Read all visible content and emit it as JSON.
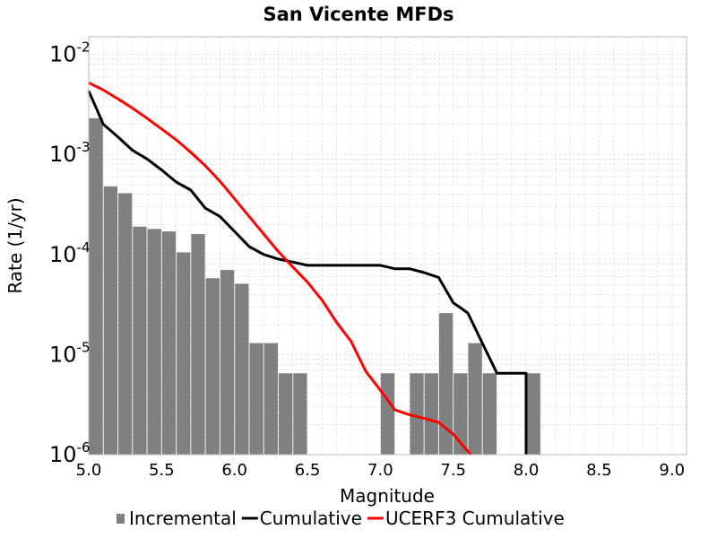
{
  "chart_data": {
    "type": "bar",
    "title": "San Vicente MFDs",
    "xlabel": "Magnitude",
    "ylabel": "Rate (1/yr)",
    "x_scale": "linear",
    "y_scale": "log",
    "xlim": [
      5.0,
      9.1
    ],
    "ylim": [
      1e-06,
      0.015
    ],
    "x_ticks": [
      "5.0",
      "5.5",
      "6.0",
      "6.5",
      "7.0",
      "7.5",
      "8.0",
      "8.5",
      "9.0"
    ],
    "x_tick_values": [
      5.0,
      5.5,
      6.0,
      6.5,
      7.0,
      7.5,
      8.0,
      8.5,
      9.0
    ],
    "y_ticks": [
      {
        "base": "10",
        "exp": "-6",
        "value": 1e-06
      },
      {
        "base": "10",
        "exp": "-5",
        "value": 1e-05
      },
      {
        "base": "10",
        "exp": "-4",
        "value": 0.0001
      },
      {
        "base": "10",
        "exp": "-3",
        "value": 0.001
      },
      {
        "base": "10",
        "exp": "-2",
        "value": 0.01
      }
    ],
    "grid": true,
    "legend_position": "bottom",
    "series": [
      {
        "name": "Incremental",
        "type": "bar",
        "color": "#808080",
        "x": [
          5.0,
          5.1,
          5.2,
          5.3,
          5.4,
          5.5,
          5.6,
          5.7,
          5.8,
          5.9,
          6.0,
          6.1,
          6.2,
          6.3,
          6.4,
          7.0,
          7.2,
          7.3,
          7.4,
          7.5,
          7.6,
          7.7,
          8.0
        ],
        "y": [
          0.0023,
          0.00048,
          0.00041,
          0.00019,
          0.00018,
          0.00017,
          0.000105,
          0.00016,
          5.8e-05,
          7e-05,
          5.1e-05,
          1.3e-05,
          1.3e-05,
          6.5e-06,
          6.5e-06,
          6.5e-06,
          6.5e-06,
          6.5e-06,
          2.6e-05,
          6.5e-06,
          1.3e-05,
          6.5e-06,
          6.5e-06
        ]
      },
      {
        "name": "Cumulative",
        "type": "line",
        "color": "#000000",
        "x": [
          5.0,
          5.1,
          5.2,
          5.3,
          5.4,
          5.5,
          5.6,
          5.7,
          5.8,
          5.9,
          6.0,
          6.1,
          6.2,
          6.3,
          6.4,
          6.5,
          6.6,
          6.7,
          6.8,
          6.9,
          7.0,
          7.1,
          7.2,
          7.3,
          7.4,
          7.5,
          7.6,
          7.7,
          7.8,
          7.9,
          8.0,
          8.0
        ],
        "y": [
          0.0043,
          0.002,
          0.0015,
          0.0011,
          0.0009,
          0.0007,
          0.00053,
          0.00044,
          0.00029,
          0.00024,
          0.00017,
          0.00012,
          0.0001,
          9e-05,
          8.4e-05,
          7.8e-05,
          7.8e-05,
          7.8e-05,
          7.8e-05,
          7.8e-05,
          7.8e-05,
          7.2e-05,
          7.2e-05,
          6.6e-05,
          5.9e-05,
          3.3e-05,
          2.6e-05,
          1.3e-05,
          6.5e-06,
          6.5e-06,
          6.5e-06,
          1e-06
        ]
      },
      {
        "name": "UCERF3 Cumulative",
        "type": "line",
        "color": "#ff0000",
        "x": [
          5.0,
          5.1,
          5.2,
          5.3,
          5.4,
          5.5,
          5.6,
          5.7,
          5.8,
          5.9,
          6.0,
          6.1,
          6.2,
          6.3,
          6.4,
          6.5,
          6.6,
          6.7,
          6.8,
          6.9,
          7.0,
          7.1,
          7.2,
          7.3,
          7.4,
          7.5,
          7.62
        ],
        "y": [
          0.0052,
          0.0044,
          0.0036,
          0.0029,
          0.0023,
          0.0018,
          0.0014,
          0.00105,
          0.00077,
          0.00054,
          0.00036,
          0.00024,
          0.00016,
          0.000107,
          7.5e-05,
          5.3e-05,
          3.5e-05,
          2.1e-05,
          1.35e-05,
          6.8e-06,
          4.4e-06,
          2.8e-06,
          2.5e-06,
          2.3e-06,
          2.1e-06,
          1.6e-06,
          1e-06
        ]
      }
    ]
  }
}
